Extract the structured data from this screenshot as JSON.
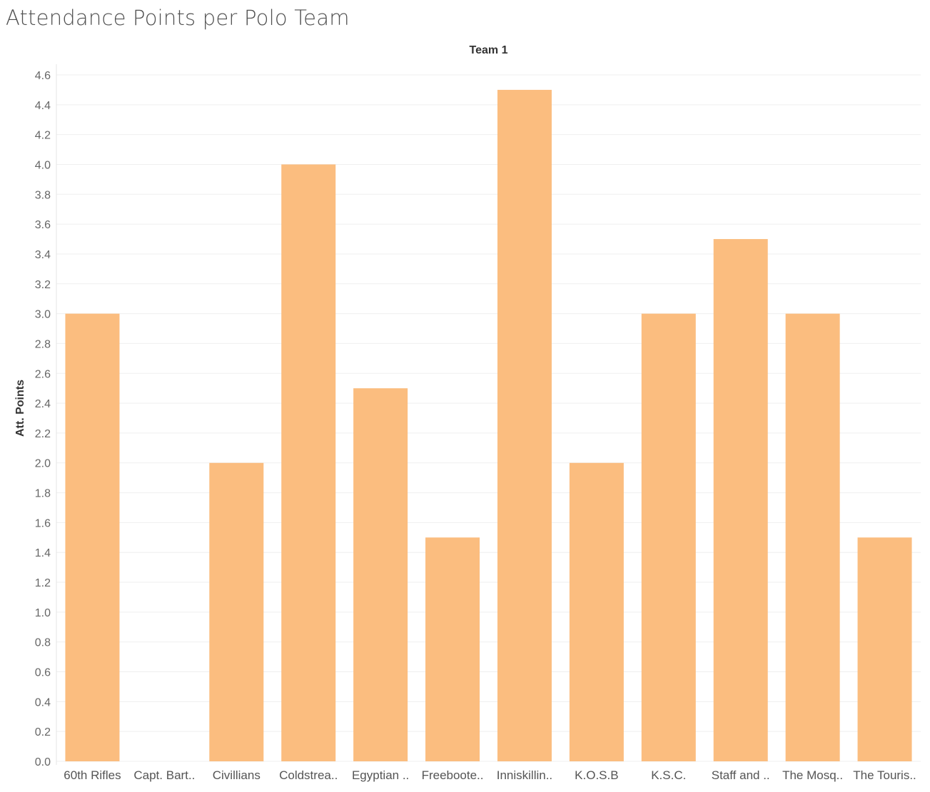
{
  "page": {
    "title": "Attendance Points per Polo Team"
  },
  "chart_data": {
    "type": "bar",
    "title": "Attendance Points per Polo Team",
    "header": "Team 1",
    "xlabel": "",
    "ylabel": "Att. Points",
    "ylim": [
      0,
      4.6
    ],
    "yticks": [
      0.0,
      0.2,
      0.4,
      0.6,
      0.8,
      1.0,
      1.2,
      1.4,
      1.6,
      1.8,
      2.0,
      2.2,
      2.4,
      2.6,
      2.8,
      3.0,
      3.2,
      3.4,
      3.6,
      3.8,
      4.0,
      4.2,
      4.4,
      4.6
    ],
    "grid": true,
    "bar_color": "#fbbd7f",
    "categories": [
      "60th Rifles",
      "Capt. Bart..",
      "Civillians",
      "Coldstrea..",
      "Egyptian ..",
      "Freeboote..",
      "Inniskillin..",
      "K.O.S.B",
      "K.S.C.",
      "Staff and ..",
      "The Mosq..",
      "The Touris.."
    ],
    "values": [
      3.0,
      0,
      2.0,
      4.0,
      2.5,
      1.5,
      4.5,
      2.0,
      3.0,
      3.5,
      3.0,
      1.5
    ]
  }
}
